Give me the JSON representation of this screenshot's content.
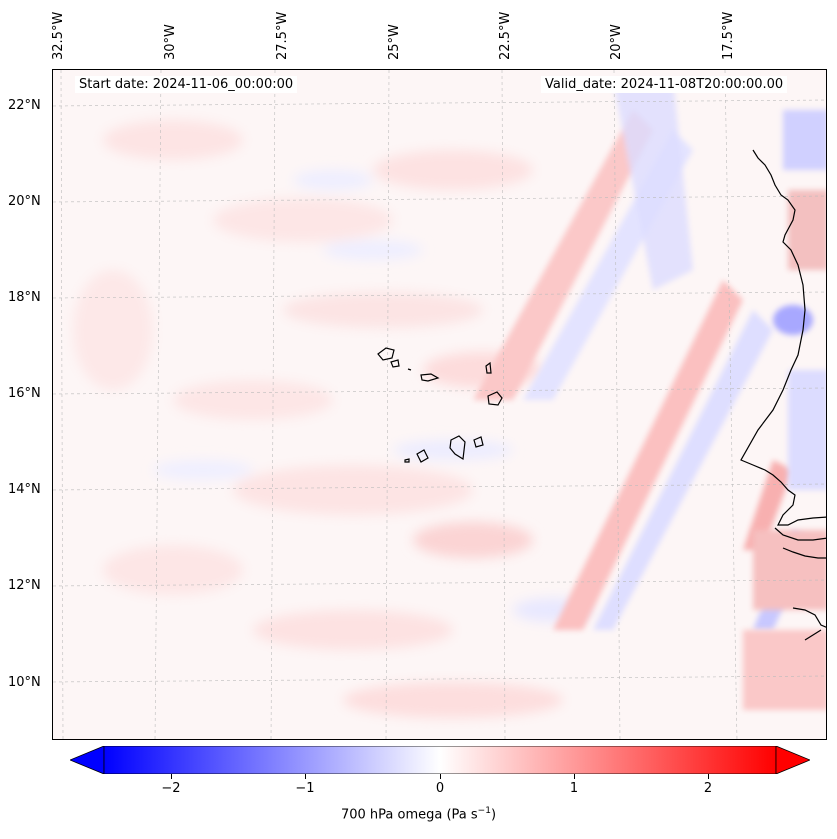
{
  "map": {
    "start_date": "Start date: 2024-11-06_00:00:00",
    "valid_date": "Valid_date: 2024-11-08T20:00:00.00",
    "longitude_labels": [
      "32.5°W",
      "30°W",
      "27.5°W",
      "25°W",
      "22.5°W",
      "20°W",
      "17.5°W"
    ],
    "latitude_labels": [
      "22°N",
      "20°N",
      "18°N",
      "16°N",
      "14°N",
      "12°N",
      "10°N"
    ],
    "field": "700 hPa omega",
    "colormap": "bwr",
    "colors": {
      "negative": "#0000ff",
      "zero": "#ffffff",
      "positive": "#ff0000",
      "coastline": "#000000",
      "gridline": "#bbbbbb"
    }
  },
  "colorbar": {
    "label": "700 hPa omega (Pa s",
    "unit_exponent": "−1",
    "label_close": ")",
    "ticks": [
      "−2",
      "−1",
      "0",
      "1",
      "2"
    ],
    "tick_values": [
      -2,
      -1,
      0,
      1,
      2
    ],
    "range": [
      -2.5,
      2.5
    ],
    "extend": "both"
  }
}
